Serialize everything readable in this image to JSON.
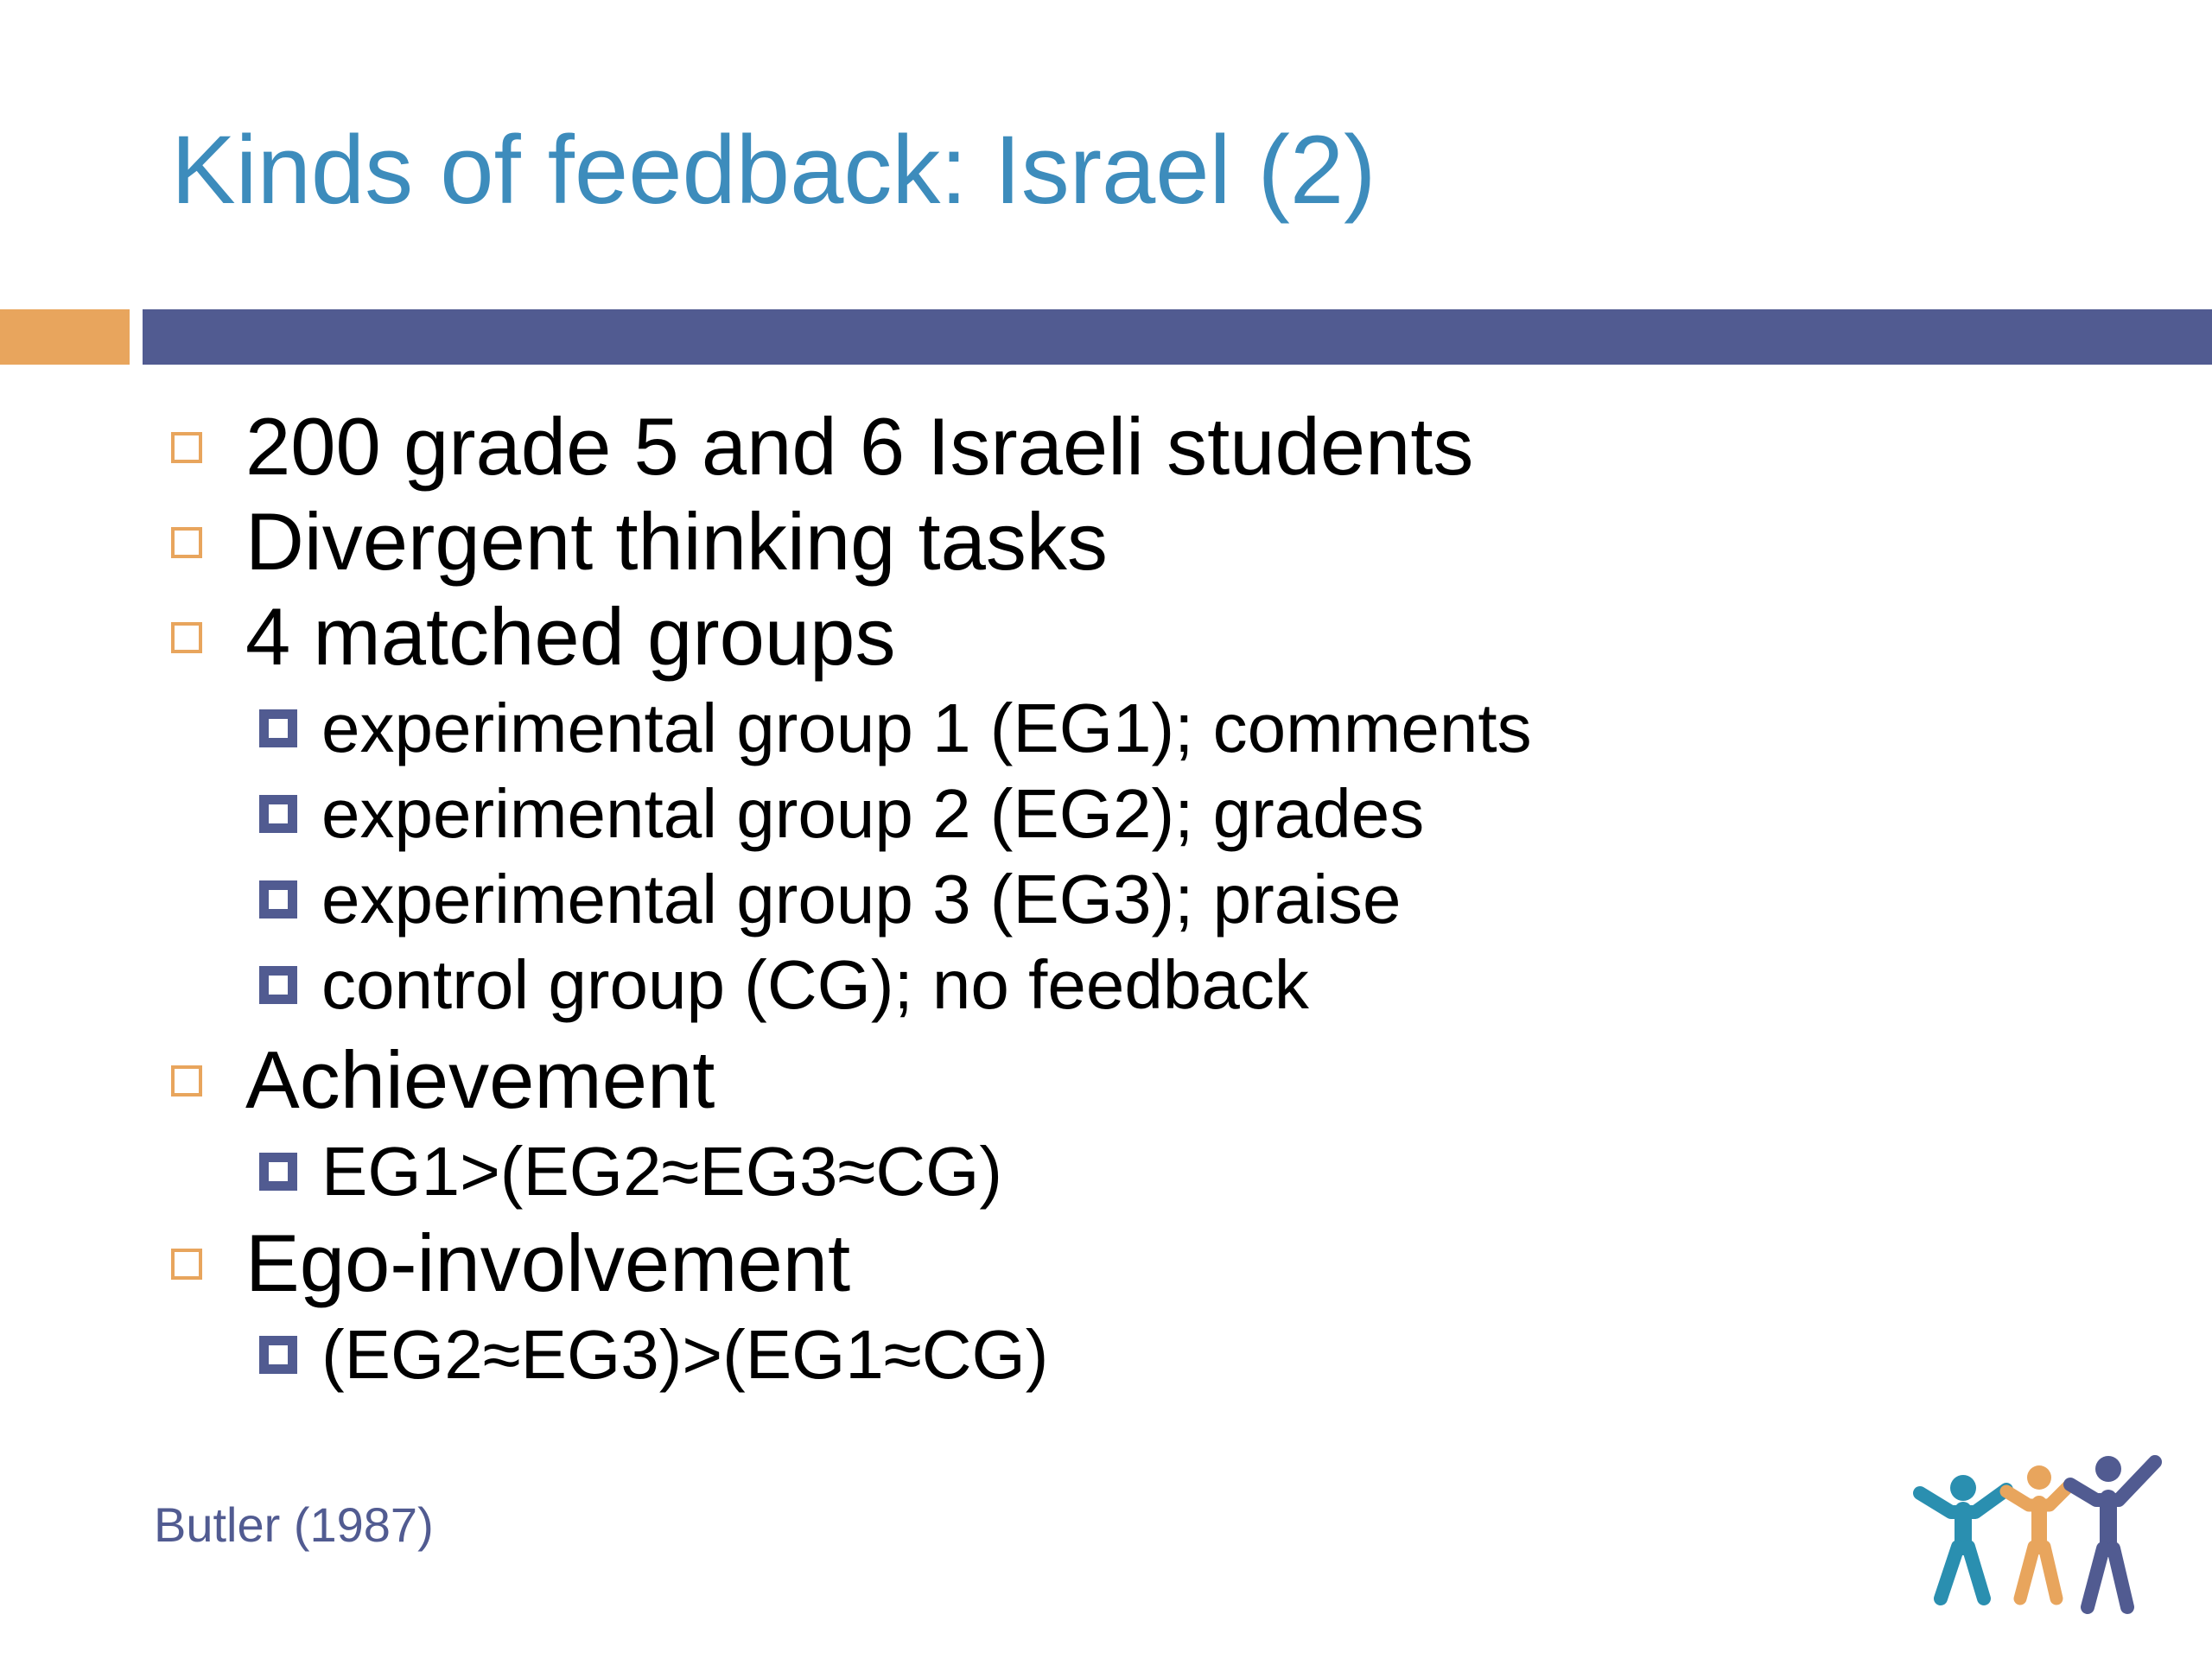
{
  "title": "Kinds of feedback: Israel (2)",
  "bullets": [
    {
      "text": "200  grade 5 and 6 Israeli students"
    },
    {
      "text": "Divergent thinking tasks"
    },
    {
      "text": "4 matched groups",
      "sub": [
        "experimental group 1 (EG1); comments",
        "experimental group 2 (EG2); grades",
        "experimental group 3 (EG3); praise",
        "control group (CG); no feedback"
      ]
    },
    {
      "text": "Achievement",
      "sub": [
        "EG1>(EG2≈EG3≈CG)"
      ]
    },
    {
      "text": "Ego-involvement",
      "sub": [
        "(EG2≈EG3)>(EG1≈CG)"
      ]
    }
  ],
  "citation": "Butler (1987)",
  "colors": {
    "title": "#3d8cbc",
    "accent_orange": "#e8a55d",
    "accent_blue": "#515b91",
    "logo_teal": "#2a8fb0",
    "logo_orange": "#e8a55d",
    "logo_purple": "#515b91"
  },
  "logo_icon": "three-people-raising-arms-icon"
}
